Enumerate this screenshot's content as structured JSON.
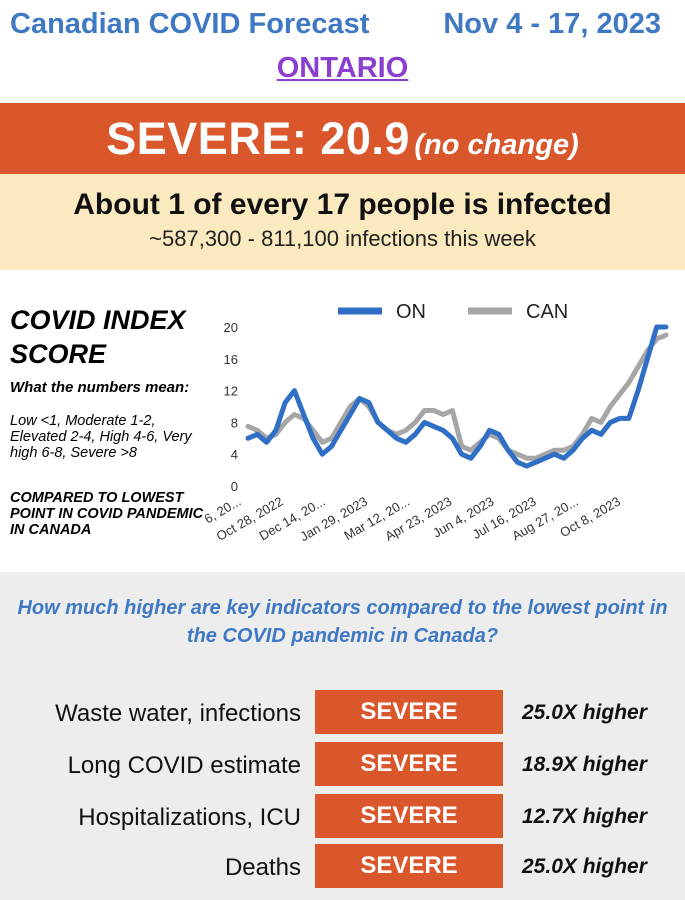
{
  "header": {
    "title": "Canadian COVID Forecast",
    "dates": "Nov 4 - 17, 2023",
    "region": "ONTARIO"
  },
  "severity": {
    "main": "SEVERE: 20.9",
    "change": "(no change)",
    "color": "#d9572b"
  },
  "infection": {
    "ratio": "About 1 of every 17 people is infected",
    "range": "~587,300 - 811,100 infections this week"
  },
  "index_panel": {
    "title": "COVID INDEX SCORE",
    "meaning_heading": "What the numbers mean:",
    "meaning_text": "Low <1, Moderate 1-2, Elevated 2-4, High 4-6, Very high 6-8, Severe >8",
    "compared_text": "COMPARED TO LOWEST POINT IN COVID PANDEMIC IN CANADA"
  },
  "chart_data": {
    "type": "line",
    "title": "",
    "xlabel": "",
    "ylabel": "",
    "ylim": [
      0,
      20
    ],
    "yticks": [
      0,
      4,
      8,
      12,
      16,
      20
    ],
    "legend_position": "top",
    "grid": false,
    "x_tick_labels": [
      "6, 20...",
      "Oct 28, 2022",
      "Dec 14, 20...",
      "Jan 29, 2023",
      "Mar 12, 20...",
      "Apr 23, 2023",
      "Jun 4, 2023",
      "Jul 16, 2023",
      "Aug 27, 20...",
      "Oct 8, 2023"
    ],
    "series": [
      {
        "name": "ON",
        "color": "#2f6fc6",
        "values": [
          6.0,
          6.5,
          5.5,
          7.0,
          10.5,
          12.0,
          9.0,
          6.0,
          4.0,
          5.0,
          7.0,
          9.0,
          11.0,
          10.5,
          8.0,
          7.0,
          6.0,
          5.5,
          6.5,
          8.0,
          7.5,
          7.0,
          6.0,
          4.0,
          3.5,
          5.0,
          7.0,
          6.5,
          4.5,
          3.0,
          2.5,
          3.0,
          3.5,
          4.0,
          3.5,
          4.5,
          6.0,
          7.0,
          6.5,
          8.0,
          8.5,
          8.5,
          12.0,
          16.0,
          20.0,
          20.0
        ]
      },
      {
        "name": "CAN",
        "color": "#a6a6a6",
        "values": [
          7.5,
          7.0,
          6.0,
          6.5,
          8.0,
          9.0,
          8.5,
          7.0,
          5.5,
          6.0,
          8.0,
          10.0,
          11.0,
          10.0,
          8.0,
          7.0,
          6.5,
          7.0,
          8.0,
          9.5,
          9.5,
          9.0,
          9.5,
          5.0,
          4.5,
          5.5,
          6.5,
          6.0,
          4.5,
          4.0,
          3.5,
          3.5,
          4.0,
          4.5,
          4.5,
          5.0,
          6.5,
          8.5,
          8.0,
          10.0,
          11.5,
          13.0,
          15.0,
          17.0,
          18.5,
          19.0
        ]
      }
    ]
  },
  "indicators": {
    "question": "How much higher are key indicators compared to the lowest point in the COVID pandemic in Canada?",
    "rows": [
      {
        "label": "Waste water, infections",
        "level": "SEVERE",
        "value": "25.0X higher"
      },
      {
        "label": "Long COVID estimate",
        "level": "SEVERE",
        "value": "18.9X higher"
      },
      {
        "label": "Hospitalizations, ICU",
        "level": "SEVERE",
        "value": "12.7X higher"
      },
      {
        "label": "Deaths",
        "level": "SEVERE",
        "value": "25.0X higher"
      }
    ]
  }
}
